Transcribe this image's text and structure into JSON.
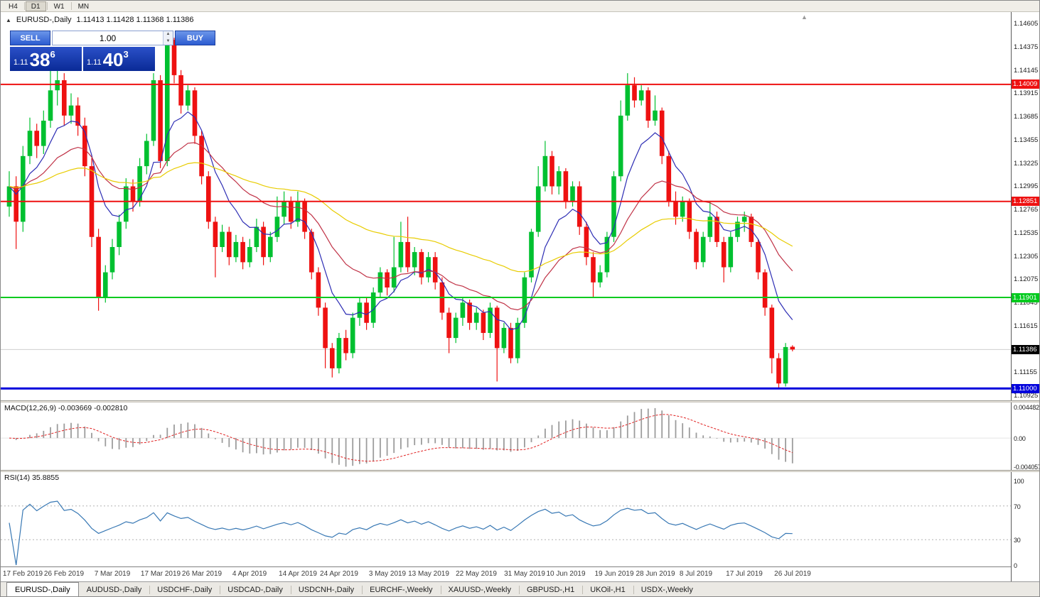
{
  "toolbar": {
    "timeframes": [
      "H4",
      "D1",
      "W1",
      "MN"
    ],
    "active": "D1"
  },
  "chart_header": {
    "collapse_icon": "▲",
    "symbol": "EURUSD-,Daily",
    "ohlc": "1.11413 1.11428 1.11368 1.11386"
  },
  "trade_panel": {
    "sell_label": "SELL",
    "buy_label": "BUY",
    "volume": "1.00",
    "sell_price": {
      "prefix": "1.11",
      "big": "38",
      "sup": "6"
    },
    "buy_price": {
      "prefix": "1.11",
      "big": "40",
      "sup": "3"
    }
  },
  "price_axis": {
    "ticks": [
      "1.14605",
      "1.14375",
      "1.14145",
      "1.13915",
      "1.13685",
      "1.13455",
      "1.13225",
      "1.12995",
      "1.12765",
      "1.12535",
      "1.12305",
      "1.12075",
      "1.11845",
      "1.11615",
      "1.11155",
      "1.10925"
    ]
  },
  "macd": {
    "title": "MACD(12,26,9) -0.003669 -0.002810",
    "axis_labels": [
      {
        "text": "0.004482",
        "value": 0.004482
      },
      {
        "text": "0.00",
        "value": 0
      },
      {
        "text": "-0.004057",
        "value": -0.004057
      }
    ]
  },
  "rsi": {
    "title": "RSI(14) 35.8855",
    "axis_labels": [
      {
        "text": "100",
        "value": 100
      },
      {
        "text": "70",
        "value": 70
      },
      {
        "text": "30",
        "value": 30
      },
      {
        "text": "0",
        "value": 0
      }
    ],
    "levels": [
      70,
      30
    ]
  },
  "tabs": {
    "active_index": 0,
    "items": [
      "EURUSD-,Daily",
      "AUDUSD-,Daily",
      "USDCHF-,Daily",
      "USDCAD-,Daily",
      "USDCNH-,Daily",
      "EURCHF-,Weekly",
      "XAUUSD-,Weekly",
      "GBPUSD-,H1",
      "UKOil-,H1",
      "USDX-,Weekly"
    ]
  },
  "colors": {
    "bull": "#00c030",
    "bear": "#ee1111",
    "macd_hist": "#9c9c9c",
    "macd_signal": "#e02020",
    "rsi_line": "#3878b4"
  },
  "chart_data": {
    "type": "candlestick",
    "symbol": "EURUSD-",
    "timeframe": "Daily",
    "current_price": 1.11386,
    "price_axis_range": [
      1.10925,
      1.14605
    ],
    "current_tag": {
      "price": 1.11386,
      "label": "1.11386",
      "bg": "#000000",
      "fg": "#ffffff"
    },
    "hlines": [
      {
        "price": 1.14009,
        "label": "1.14009",
        "color": "#ee1111",
        "width": 2
      },
      {
        "price": 1.12851,
        "label": "1.12851",
        "color": "#ee1111",
        "width": 2
      },
      {
        "price": 1.11901,
        "label": "1.11901",
        "color": "#00ca1e",
        "width": 2
      },
      {
        "price": 1.11,
        "label": "1.11000",
        "color": "#0000dc",
        "width": 3
      }
    ],
    "ma_lines": [
      {
        "period": 8,
        "color": "#2d2db4"
      },
      {
        "period": 21,
        "color": "#c03246"
      },
      {
        "period": 55,
        "color": "#e8cc00"
      }
    ],
    "macd_params": [
      12,
      26,
      9
    ],
    "rsi_period": 14,
    "date_ticks": {
      "labels": [
        "17 Feb 2019",
        "26 Feb 2019",
        "7 Mar 2019",
        "17 Mar 2019",
        "26 Mar 2019",
        "4 Apr 2019",
        "14 Apr 2019",
        "24 Apr 2019",
        "3 May 2019",
        "13 May 2019",
        "22 May 2019",
        "31 May 2019",
        "10 Jun 2019",
        "19 Jun 2019",
        "28 Jun 2019",
        "8 Jul 2019",
        "17 Jul 2019",
        "26 Jul 2019"
      ],
      "candle_indices": [
        2,
        8,
        15,
        22,
        28,
        35,
        42,
        48,
        55,
        61,
        68,
        75,
        81,
        88,
        94,
        100,
        107,
        114
      ]
    },
    "candles": [
      [
        1.128,
        1.1315,
        1.127,
        1.13
      ],
      [
        1.13,
        1.131,
        1.1238,
        1.1265
      ],
      [
        1.1265,
        1.134,
        1.1255,
        1.133
      ],
      [
        1.133,
        1.1368,
        1.1322,
        1.1355
      ],
      [
        1.1355,
        1.1362,
        1.1328,
        1.134
      ],
      [
        1.134,
        1.1375,
        1.1332,
        1.1365
      ],
      [
        1.1365,
        1.142,
        1.1358,
        1.1395
      ],
      [
        1.1395,
        1.1419,
        1.138,
        1.1405
      ],
      [
        1.1405,
        1.1412,
        1.136,
        1.137
      ],
      [
        1.137,
        1.1392,
        1.1362,
        1.138
      ],
      [
        1.138,
        1.1388,
        1.135,
        1.136
      ],
      [
        1.136,
        1.1368,
        1.131,
        1.132
      ],
      [
        1.132,
        1.1328,
        1.124,
        1.125
      ],
      [
        1.125,
        1.1258,
        1.1177,
        1.119
      ],
      [
        1.119,
        1.1222,
        1.1185,
        1.1215
      ],
      [
        1.1215,
        1.1248,
        1.1208,
        1.124
      ],
      [
        1.124,
        1.1272,
        1.1232,
        1.1265
      ],
      [
        1.1265,
        1.1308,
        1.1258,
        1.13
      ],
      [
        1.13,
        1.1307,
        1.1275,
        1.1285
      ],
      [
        1.1285,
        1.1328,
        1.128,
        1.132
      ],
      [
        1.132,
        1.1352,
        1.1312,
        1.1345
      ],
      [
        1.1345,
        1.1412,
        1.134,
        1.1405
      ],
      [
        1.1405,
        1.141,
        1.1318,
        1.1325
      ],
      [
        1.1325,
        1.145,
        1.132,
        1.1445
      ],
      [
        1.1445,
        1.1447,
        1.1402,
        1.141
      ],
      [
        1.141,
        1.1415,
        1.1372,
        1.138
      ],
      [
        1.138,
        1.14,
        1.1375,
        1.1395
      ],
      [
        1.1395,
        1.1398,
        1.1342,
        1.135
      ],
      [
        1.135,
        1.1355,
        1.1302,
        1.131
      ],
      [
        1.131,
        1.1315,
        1.1258,
        1.1265
      ],
      [
        1.1265,
        1.127,
        1.121,
        1.124
      ],
      [
        1.124,
        1.1262,
        1.1235,
        1.1255
      ],
      [
        1.1255,
        1.126,
        1.1222,
        1.123
      ],
      [
        1.123,
        1.1252,
        1.1225,
        1.1245
      ],
      [
        1.1245,
        1.125,
        1.1218,
        1.1225
      ],
      [
        1.1225,
        1.1248,
        1.122,
        1.124
      ],
      [
        1.124,
        1.1268,
        1.1235,
        1.126
      ],
      [
        1.126,
        1.1265,
        1.1222,
        1.123
      ],
      [
        1.123,
        1.1255,
        1.1225,
        1.125
      ],
      [
        1.125,
        1.129,
        1.1245,
        1.127
      ],
      [
        1.127,
        1.1295,
        1.1262,
        1.1285
      ],
      [
        1.1285,
        1.129,
        1.1258,
        1.1265
      ],
      [
        1.1265,
        1.1295,
        1.126,
        1.1285
      ],
      [
        1.1285,
        1.1288,
        1.1248,
        1.1255
      ],
      [
        1.1255,
        1.1258,
        1.1208,
        1.1215
      ],
      [
        1.1215,
        1.122,
        1.1172,
        1.118
      ],
      [
        1.118,
        1.1185,
        1.112,
        1.114
      ],
      [
        1.114,
        1.1145,
        1.1111,
        1.112
      ],
      [
        1.112,
        1.1155,
        1.1115,
        1.115
      ],
      [
        1.115,
        1.1158,
        1.1128,
        1.1135
      ],
      [
        1.1135,
        1.1175,
        1.113,
        1.117
      ],
      [
        1.117,
        1.119,
        1.1162,
        1.1185
      ],
      [
        1.1185,
        1.119,
        1.1158,
        1.1165
      ],
      [
        1.1165,
        1.12,
        1.116,
        1.1195
      ],
      [
        1.1195,
        1.122,
        1.119,
        1.1215
      ],
      [
        1.1215,
        1.1218,
        1.1192,
        1.12
      ],
      [
        1.12,
        1.125,
        1.1195,
        1.122
      ],
      [
        1.122,
        1.1265,
        1.1215,
        1.1245
      ],
      [
        1.1245,
        1.127,
        1.1215,
        1.122
      ],
      [
        1.122,
        1.124,
        1.1212,
        1.1235
      ],
      [
        1.1235,
        1.1238,
        1.1203,
        1.121
      ],
      [
        1.121,
        1.1235,
        1.1205,
        1.123
      ],
      [
        1.123,
        1.1235,
        1.1198,
        1.1205
      ],
      [
        1.1205,
        1.121,
        1.1168,
        1.1175
      ],
      [
        1.1175,
        1.118,
        1.1135,
        1.115
      ],
      [
        1.115,
        1.1175,
        1.1145,
        1.117
      ],
      [
        1.117,
        1.119,
        1.1162,
        1.1185
      ],
      [
        1.1185,
        1.1188,
        1.1158,
        1.1165
      ],
      [
        1.1165,
        1.118,
        1.1158,
        1.1175
      ],
      [
        1.1175,
        1.1178,
        1.1148,
        1.1155
      ],
      [
        1.1155,
        1.1185,
        1.115,
        1.118
      ],
      [
        1.118,
        1.1182,
        1.1107,
        1.114
      ],
      [
        1.114,
        1.1165,
        1.1135,
        1.116
      ],
      [
        1.116,
        1.1165,
        1.1125,
        1.113
      ],
      [
        1.113,
        1.117,
        1.1125,
        1.1165
      ],
      [
        1.1165,
        1.1215,
        1.116,
        1.121
      ],
      [
        1.121,
        1.1258,
        1.1205,
        1.1255
      ],
      [
        1.1255,
        1.132,
        1.125,
        1.13
      ],
      [
        1.13,
        1.1345,
        1.1295,
        1.133
      ],
      [
        1.133,
        1.1335,
        1.1292,
        1.13
      ],
      [
        1.13,
        1.132,
        1.1292,
        1.1315
      ],
      [
        1.1315,
        1.1318,
        1.1278,
        1.1285
      ],
      [
        1.1285,
        1.1305,
        1.128,
        1.13
      ],
      [
        1.13,
        1.1305,
        1.1252,
        1.126
      ],
      [
        1.126,
        1.1265,
        1.1222,
        1.123
      ],
      [
        1.123,
        1.1235,
        1.119,
        1.1205
      ],
      [
        1.1205,
        1.1222,
        1.12,
        1.1215
      ],
      [
        1.1215,
        1.1255,
        1.121,
        1.125
      ],
      [
        1.125,
        1.1315,
        1.1245,
        1.131
      ],
      [
        1.131,
        1.1385,
        1.1305,
        1.137
      ],
      [
        1.137,
        1.1412,
        1.1365,
        1.14
      ],
      [
        1.14,
        1.1408,
        1.1378,
        1.1385
      ],
      [
        1.1385,
        1.14,
        1.138,
        1.1395
      ],
      [
        1.1395,
        1.1398,
        1.1358,
        1.1365
      ],
      [
        1.1365,
        1.139,
        1.136,
        1.1375
      ],
      [
        1.1375,
        1.1378,
        1.1322,
        1.133
      ],
      [
        1.133,
        1.1335,
        1.128,
        1.1285
      ],
      [
        1.1285,
        1.1295,
        1.1262,
        1.127
      ],
      [
        1.127,
        1.129,
        1.1265,
        1.1285
      ],
      [
        1.1285,
        1.1288,
        1.1248,
        1.1255
      ],
      [
        1.1255,
        1.1258,
        1.1218,
        1.1225
      ],
      [
        1.1225,
        1.1255,
        1.122,
        1.125
      ],
      [
        1.125,
        1.1285,
        1.1245,
        1.127
      ],
      [
        1.127,
        1.1275,
        1.124,
        1.1245
      ],
      [
        1.1245,
        1.125,
        1.1205,
        1.122
      ],
      [
        1.122,
        1.1255,
        1.1215,
        1.125
      ],
      [
        1.125,
        1.127,
        1.1245,
        1.1265
      ],
      [
        1.1265,
        1.1275,
        1.1255,
        1.127
      ],
      [
        1.127,
        1.1273,
        1.124,
        1.1245
      ],
      [
        1.1245,
        1.1248,
        1.1208,
        1.1215
      ],
      [
        1.1215,
        1.1218,
        1.1172,
        1.118
      ],
      [
        1.118,
        1.1183,
        1.1115,
        1.113
      ],
      [
        1.113,
        1.1135,
        1.11,
        1.1105
      ],
      [
        1.1105,
        1.1145,
        1.1102,
        1.1141
      ],
      [
        1.11413,
        1.11428,
        1.11368,
        1.11386
      ]
    ]
  }
}
